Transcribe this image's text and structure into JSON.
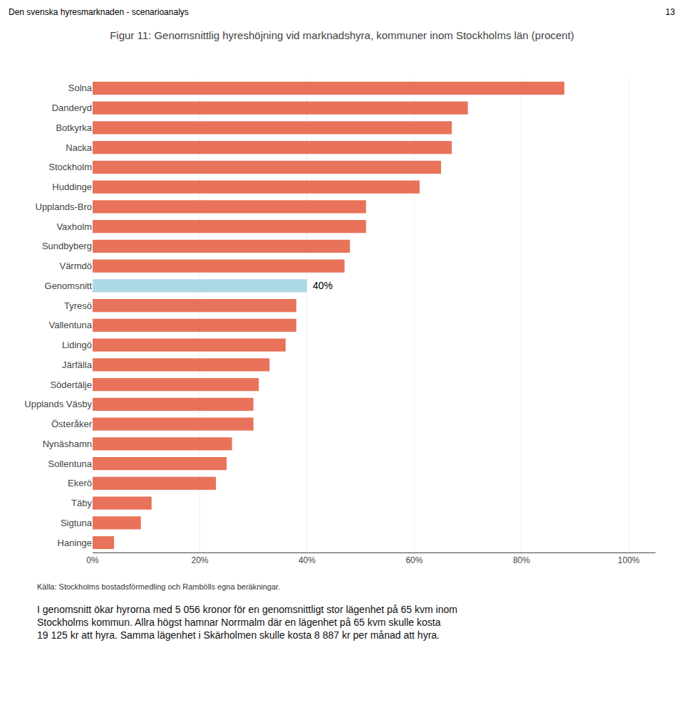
{
  "chart_data": {
    "type": "bar",
    "orientation": "horizontal",
    "title": "Figur 11: Genomsnittlig hyreshöjning vid marknadshyra, kommuner inom Stockholms län (procent)",
    "header": "Den svenska hyresmarknaden - scenarioanalys",
    "header_right": "13",
    "categories": [
      "Solna",
      "Danderyd",
      "Botkyrka",
      "Nacka",
      "Stockholm",
      "Huddinge",
      "Upplands-Bro",
      "Vaxholm",
      "Sundbyberg",
      "Värmdö",
      "Genomsnitt",
      "Tyresö",
      "Vallentuna",
      "Lidingö",
      "Järfälla",
      "Södertälje",
      "Upplands Väsby",
      "Österåker",
      "Nynäshamn",
      "Sollentuna",
      "Ekerö",
      "Täby",
      "Sigtuna",
      "Haninge"
    ],
    "values": [
      88,
      70,
      67,
      67,
      65,
      61,
      51,
      51,
      48,
      47,
      40,
      38,
      38,
      36,
      33,
      31,
      30,
      30,
      26,
      25,
      23,
      11,
      9,
      4
    ],
    "colors": [
      "#E8735A",
      "#E8735A",
      "#E8735A",
      "#E8735A",
      "#E8735A",
      "#E8735A",
      "#E8735A",
      "#E8735A",
      "#E8735A",
      "#E8735A",
      "#ADD8E6",
      "#E8735A",
      "#E8735A",
      "#E8735A",
      "#E8735A",
      "#E8735A",
      "#E8735A",
      "#E8735A",
      "#E8735A",
      "#E8735A",
      "#E8735A",
      "#E8735A",
      "#E8735A",
      "#E8735A"
    ],
    "xlim": [
      0,
      105
    ],
    "xticks": [
      {
        "value": 0,
        "label": "0%"
      },
      {
        "value": 20,
        "label": "20%"
      },
      {
        "value": 40,
        "label": "40%"
      },
      {
        "value": 60,
        "label": "60%"
      },
      {
        "value": 80,
        "label": "80%"
      },
      {
        "value": 100,
        "label": "100%"
      }
    ],
    "grid": true,
    "annotations": [
      {
        "text": "40%",
        "category": "Genomsnitt"
      }
    ],
    "source": "Källa: Stockholms bostadsförmedling och Rambölls egna beräkningar.",
    "footer": "I genomsnitt ökar hyrorna med 5 056 kronor för en genomsnittligt stor lägenhet på 65 kvm inom\nStockholms kommun. Allra högst hamnar Norrmalm där en lägenhet på 65 kvm skulle kosta\n19 125 kr att hyra. Samma lägenhet i Skärholmen skulle kosta 8 887 kr per månad att hyra."
  }
}
